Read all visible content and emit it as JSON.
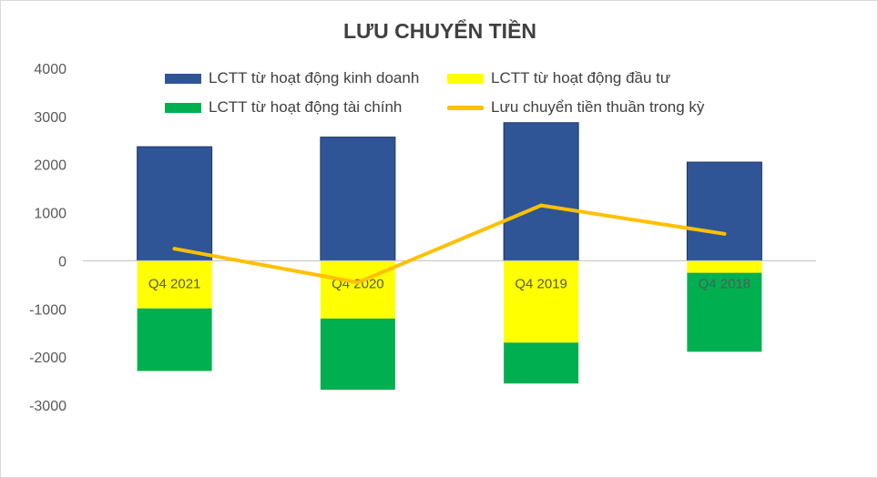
{
  "chart_data": {
    "type": "bar",
    "stacked": true,
    "title": "LƯU CHUYỂN TIỀN",
    "categories": [
      "Q4 2021",
      "Q4 2020",
      "Q4 2019",
      "Q4 2018"
    ],
    "ylim": [
      -3000,
      4000
    ],
    "yticks": [
      4000,
      3000,
      2000,
      1000,
      0,
      -1000,
      -2000,
      -3000
    ],
    "grid": false,
    "legend_position": "top",
    "series": [
      {
        "name": "LCTT từ hoạt động kinh doanh",
        "type": "bar",
        "color": "#2f5597",
        "values": [
          2370,
          2570,
          2870,
          2050
        ]
      },
      {
        "name": "LCTT từ hoạt động đầu tư",
        "type": "bar",
        "color": "#ffff00",
        "values": [
          -990,
          -1200,
          -1700,
          -250
        ]
      },
      {
        "name": "LCTT từ hoạt động tài chính",
        "type": "bar",
        "color": "#00b050",
        "values": [
          -1300,
          -1480,
          -850,
          -1640
        ]
      },
      {
        "name": "Lưu chuyển tiền thuần trong kỳ",
        "type": "line",
        "color": "#ffc000",
        "values": [
          250,
          -450,
          1150,
          560
        ]
      }
    ]
  }
}
